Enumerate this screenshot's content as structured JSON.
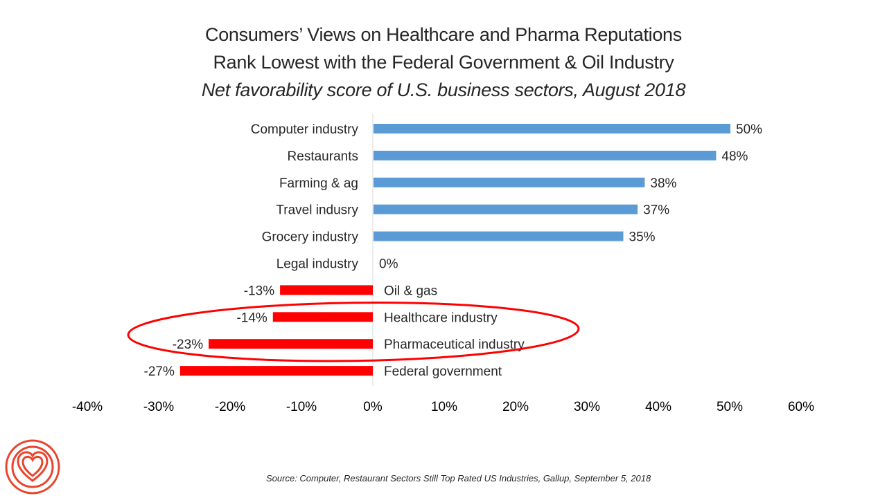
{
  "header": {
    "title_line1": "Consumers’ Views on Healthcare and Pharma Reputations",
    "title_line2": "Rank Lowest with the Federal Government & Oil Industry",
    "subtitle": "Net favorability score of U.S. business sectors, August 2018"
  },
  "footer": {
    "source": "Source: Computer,  Restaurant Sectors Still Top Rated US Industries, Gallup, September 5, 2018",
    "logo_icon": "concentric-heart-logo-icon"
  },
  "colors": {
    "positive": "#5b9bd5",
    "negative": "#ff0000",
    "highlight": "#ff0000",
    "axis": "#d9d9d9",
    "logo": "#e8452c"
  },
  "chart_data": {
    "type": "bar",
    "orientation": "horizontal",
    "title": "Consumers’ Views on Healthcare and Pharma Reputations Rank Lowest with the Federal Government & Oil Industry",
    "subtitle": "Net favorability score of U.S. business sectors, August 2018",
    "xlabel": "",
    "ylabel": "",
    "xlim": [
      -40,
      60
    ],
    "unit": "%",
    "grid": false,
    "legend": "none",
    "x_ticks": [
      "-40%",
      "-30%",
      "-20%",
      "-10%",
      "0%",
      "10%",
      "20%",
      "30%",
      "40%",
      "50%",
      "60%"
    ],
    "x_tick_values": [
      -40,
      -30,
      -20,
      -10,
      0,
      10,
      20,
      30,
      40,
      50,
      60
    ],
    "categories": [
      "Computer industry",
      "Restaurants",
      "Farming & ag",
      "Travel indusry",
      "Grocery industry",
      "Legal industry",
      "Oil & gas",
      "Healthcare industry",
      "Pharmaceutical industry",
      "Federal government"
    ],
    "values": [
      50,
      48,
      38,
      37,
      35,
      0,
      -13,
      -14,
      -23,
      -27
    ],
    "data_labels": [
      "50%",
      "48%",
      "38%",
      "37%",
      "35%",
      "0%",
      "-13%",
      "-14%",
      "-23%",
      "-27%"
    ],
    "annotations": [
      {
        "type": "ellipse",
        "label": "highlight",
        "encloses": [
          "Healthcare industry",
          "Pharmaceutical industry"
        ]
      }
    ]
  }
}
